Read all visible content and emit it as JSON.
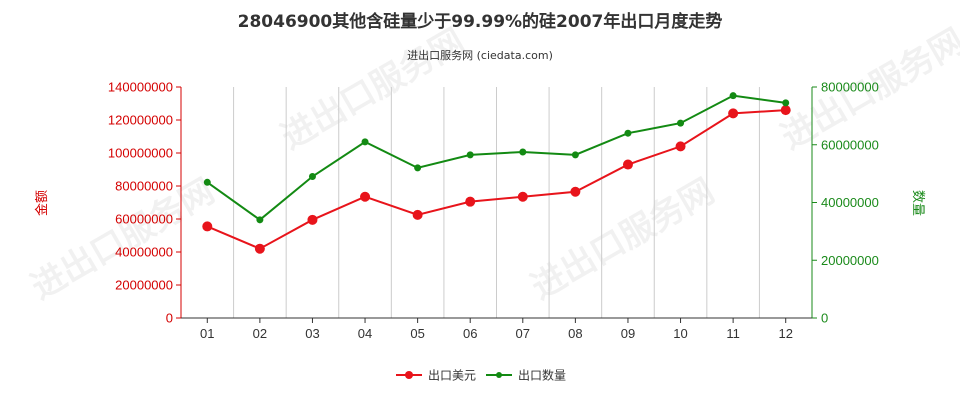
{
  "chart_data": {
    "type": "line",
    "title": "28046900其他含硅量少于99.99%的硅2007年出口月度走势",
    "subtitle": "进出口服务网 (ciedata.com)",
    "ylabel_left": "金额",
    "ylabel_right": "数量",
    "watermark": "进出口服务网",
    "categories": [
      "01",
      "02",
      "03",
      "04",
      "05",
      "06",
      "07",
      "08",
      "09",
      "10",
      "11",
      "12"
    ],
    "ylim_left": [
      0,
      140000000
    ],
    "ylim_right": [
      0,
      80000000
    ],
    "yticks_left": [
      "0",
      "20000000",
      "40000000",
      "60000000",
      "80000000",
      "100000000",
      "120000000",
      "140000000"
    ],
    "yticks_right": [
      "0",
      "20000000",
      "40000000",
      "60000000",
      "80000000"
    ],
    "grid": "vertical",
    "legend_position": "bottom",
    "series": [
      {
        "name": "出口美元",
        "axis": "left",
        "color": "#e8141b",
        "values": [
          55500000,
          42000000,
          59500000,
          73500000,
          62500000,
          70500000,
          73500000,
          76500000,
          93000000,
          104000000,
          124000000,
          126000000
        ]
      },
      {
        "name": "出口数量",
        "axis": "right",
        "color": "#138a13",
        "values": [
          47000000,
          34000000,
          49000000,
          61000000,
          52000000,
          56500000,
          57500000,
          56500000,
          64000000,
          67500000,
          77000000,
          74500000
        ]
      }
    ]
  }
}
